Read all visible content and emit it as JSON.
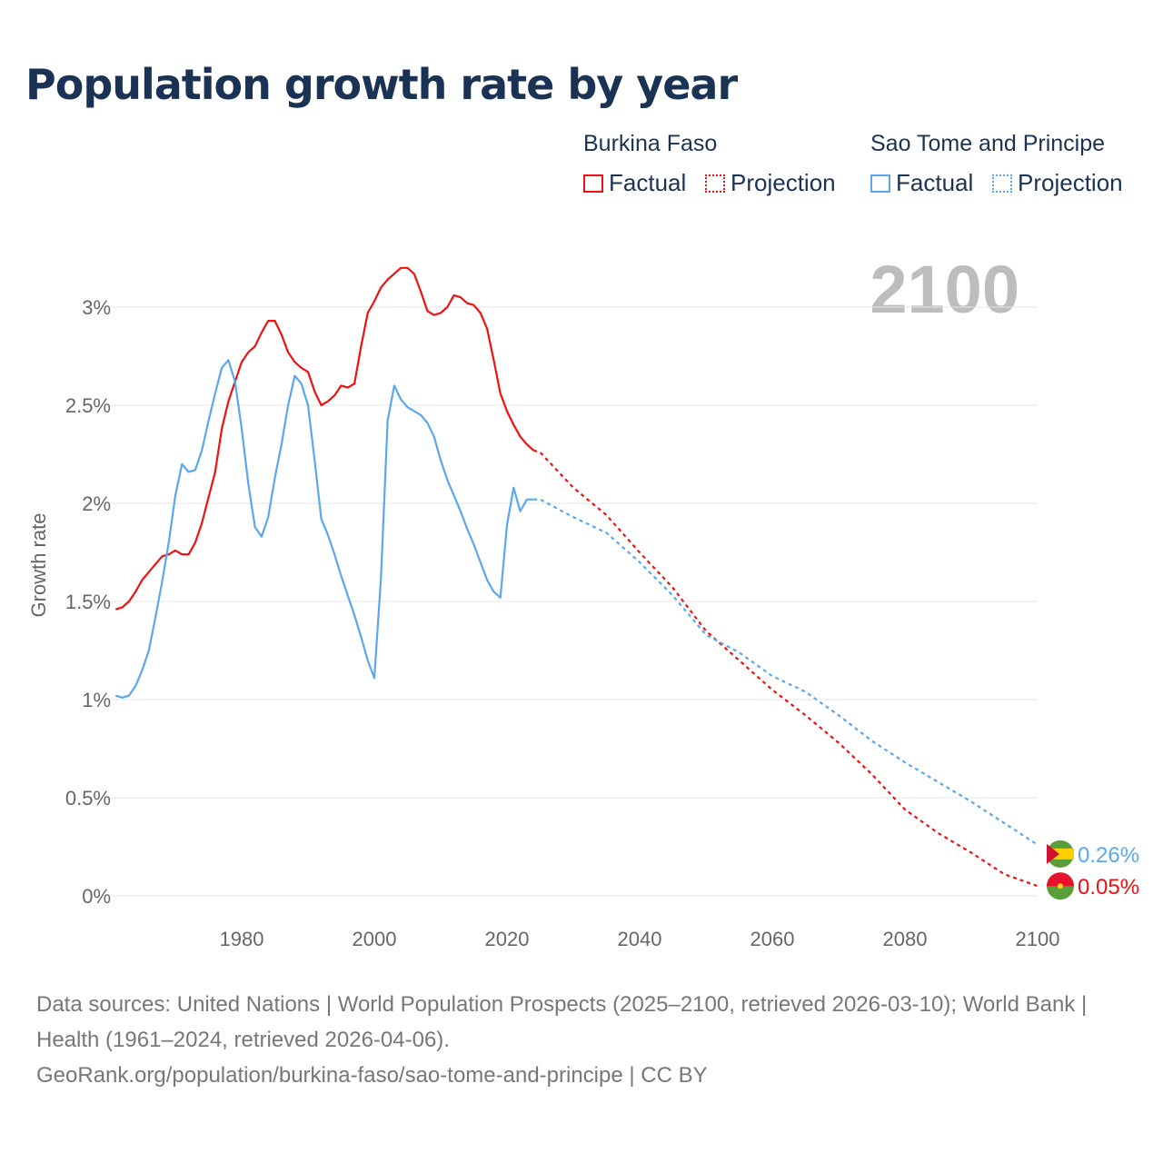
{
  "chart_data": {
    "type": "line",
    "title": "Population growth rate by year",
    "ylabel": "Growth rate",
    "xlabel": "",
    "xlim": [
      1961,
      2100
    ],
    "ylim": [
      0,
      3.3
    ],
    "x_ticks": [
      "1980",
      "2000",
      "2020",
      "2040",
      "2060",
      "2080",
      "2100"
    ],
    "y_ticks": [
      "0%",
      "0.5%",
      "1%",
      "1.5%",
      "2%",
      "2.5%",
      "3%"
    ],
    "year_label": "2100",
    "legend": {
      "groups": [
        {
          "name": "Burkina Faso",
          "items": [
            "Factual",
            "Projection"
          ]
        },
        {
          "name": "Sao Tome and Principe",
          "items": [
            "Factual",
            "Projection"
          ]
        }
      ],
      "placement": "top-right"
    },
    "series": [
      {
        "name": "Burkina Faso",
        "color": "#ee1111",
        "end_label": "0.05%",
        "factual": {
          "start_year": 1961,
          "values": [
            1.46,
            1.47,
            1.5,
            1.55,
            1.61,
            1.65,
            1.69,
            1.73,
            1.74,
            1.76,
            1.74,
            1.74,
            1.8,
            1.9,
            2.03,
            2.16,
            2.38,
            2.52,
            2.62,
            2.72,
            2.77,
            2.8,
            2.87,
            2.93,
            2.93,
            2.86,
            2.77,
            2.72,
            2.69,
            2.67,
            2.57,
            2.5,
            2.52,
            2.55,
            2.6,
            2.59,
            2.61,
            2.8,
            2.97,
            3.03,
            3.1,
            3.14,
            3.17,
            3.2,
            3.2,
            3.17,
            3.08,
            2.98,
            2.96,
            2.97,
            3.0,
            3.06,
            3.05,
            3.02,
            3.01,
            2.97,
            2.89,
            2.73,
            2.56,
            2.47,
            2.4,
            2.34,
            2.3,
            2.27
          ]
        },
        "projection": {
          "years": [
            2024,
            2025,
            2030,
            2035,
            2040,
            2045,
            2050,
            2055,
            2060,
            2065,
            2070,
            2075,
            2080,
            2085,
            2090,
            2095,
            2100
          ],
          "values": [
            2.27,
            2.26,
            2.08,
            1.94,
            1.75,
            1.57,
            1.35,
            1.2,
            1.05,
            0.92,
            0.78,
            0.62,
            0.44,
            0.32,
            0.22,
            0.11,
            0.05
          ]
        }
      },
      {
        "name": "Sao Tome and Principe",
        "color": "#5ba7ee",
        "end_label": "0.26%",
        "factual": {
          "start_year": 1961,
          "values": [
            1.02,
            1.01,
            1.02,
            1.07,
            1.15,
            1.25,
            1.42,
            1.6,
            1.8,
            2.04,
            2.2,
            2.16,
            2.17,
            2.27,
            2.42,
            2.56,
            2.69,
            2.73,
            2.62,
            2.38,
            2.1,
            1.88,
            1.83,
            1.93,
            2.13,
            2.3,
            2.5,
            2.65,
            2.61,
            2.5,
            2.22,
            1.92,
            1.84,
            1.74,
            1.63,
            1.53,
            1.43,
            1.32,
            1.2,
            1.11,
            1.62,
            2.42,
            2.6,
            2.53,
            2.49,
            2.47,
            2.45,
            2.41,
            2.34,
            2.22,
            2.12,
            2.04,
            1.96,
            1.87,
            1.79,
            1.7,
            1.61,
            1.55,
            1.52,
            1.89,
            2.08,
            1.96,
            2.02,
            2.02
          ]
        },
        "projection": {
          "years": [
            2024,
            2025,
            2030,
            2035,
            2040,
            2045,
            2050,
            2055,
            2060,
            2065,
            2070,
            2075,
            2080,
            2085,
            2090,
            2095,
            2100
          ],
          "values": [
            2.02,
            2.02,
            1.93,
            1.85,
            1.7,
            1.53,
            1.33,
            1.24,
            1.12,
            1.04,
            0.92,
            0.79,
            0.68,
            0.58,
            0.48,
            0.37,
            0.26
          ]
        }
      }
    ]
  },
  "footer": {
    "line1": "Data sources: United Nations | World Population Prospects (2025–2100, retrieved 2026-03-10); World Bank | Health (1961–2024, retrieved 2026-04-06).",
    "line2": "GeoRank.org/population/burkina-faso/sao-tome-and-principe | CC BY"
  }
}
